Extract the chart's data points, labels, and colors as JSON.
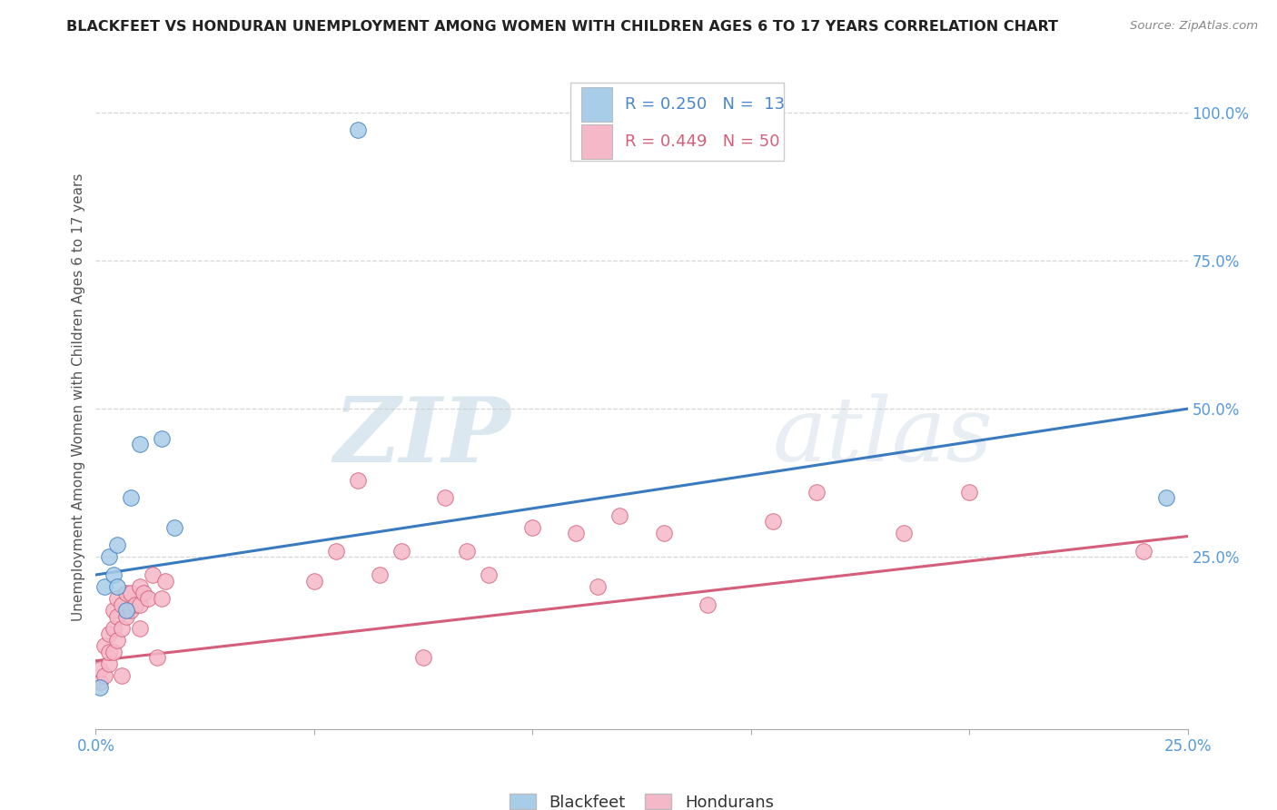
{
  "title": "BLACKFEET VS HONDURAN UNEMPLOYMENT AMONG WOMEN WITH CHILDREN AGES 6 TO 17 YEARS CORRELATION CHART",
  "source": "Source: ZipAtlas.com",
  "ylabel": "Unemployment Among Women with Children Ages 6 to 17 years",
  "watermark_zip": "ZIP",
  "watermark_atlas": "atlas",
  "blue_color": "#a8cde8",
  "pink_color": "#f5b8c8",
  "blue_line_color": "#3a7abf",
  "pink_line_color": "#d45f7a",
  "blue_text_color": "#4a86cc",
  "pink_text_color": "#d45f7a",
  "grid_color": "#cccccc",
  "axis_tick_color": "#5599dd",
  "r_blue": "R = 0.250",
  "n_blue": "N =  13",
  "r_pink": "R = 0.449",
  "n_pink": "N = 50",
  "legend_label_blue": "Blackfeet",
  "legend_label_pink": "Hondurans",
  "blackfeet_x": [
    0.001,
    0.002,
    0.003,
    0.004,
    0.005,
    0.005,
    0.007,
    0.008,
    0.01,
    0.015,
    0.018,
    0.06,
    0.245
  ],
  "blackfeet_y": [
    0.03,
    0.2,
    0.25,
    0.22,
    0.2,
    0.27,
    0.16,
    0.35,
    0.44,
    0.45,
    0.3,
    0.97,
    0.35
  ],
  "honduran_x": [
    0.001,
    0.001,
    0.002,
    0.002,
    0.003,
    0.003,
    0.003,
    0.004,
    0.004,
    0.004,
    0.005,
    0.005,
    0.005,
    0.006,
    0.006,
    0.006,
    0.007,
    0.007,
    0.008,
    0.008,
    0.009,
    0.01,
    0.01,
    0.01,
    0.011,
    0.012,
    0.013,
    0.014,
    0.015,
    0.016,
    0.05,
    0.055,
    0.06,
    0.065,
    0.07,
    0.075,
    0.08,
    0.085,
    0.09,
    0.1,
    0.11,
    0.115,
    0.12,
    0.13,
    0.14,
    0.155,
    0.165,
    0.185,
    0.2,
    0.24
  ],
  "honduran_y": [
    0.04,
    0.06,
    0.05,
    0.1,
    0.07,
    0.09,
    0.12,
    0.09,
    0.13,
    0.16,
    0.11,
    0.15,
    0.18,
    0.05,
    0.13,
    0.17,
    0.15,
    0.19,
    0.16,
    0.19,
    0.17,
    0.13,
    0.17,
    0.2,
    0.19,
    0.18,
    0.22,
    0.08,
    0.18,
    0.21,
    0.21,
    0.26,
    0.38,
    0.22,
    0.26,
    0.08,
    0.35,
    0.26,
    0.22,
    0.3,
    0.29,
    0.2,
    0.32,
    0.29,
    0.17,
    0.31,
    0.36,
    0.29,
    0.36,
    0.26
  ],
  "blue_line_x": [
    0.0,
    0.25
  ],
  "blue_line_y": [
    0.22,
    0.5
  ],
  "pink_line_x": [
    0.0,
    0.25
  ],
  "pink_line_y": [
    0.075,
    0.285
  ],
  "xmin": 0.0,
  "xmax": 0.25,
  "ymin": -0.04,
  "ymax": 1.08
}
